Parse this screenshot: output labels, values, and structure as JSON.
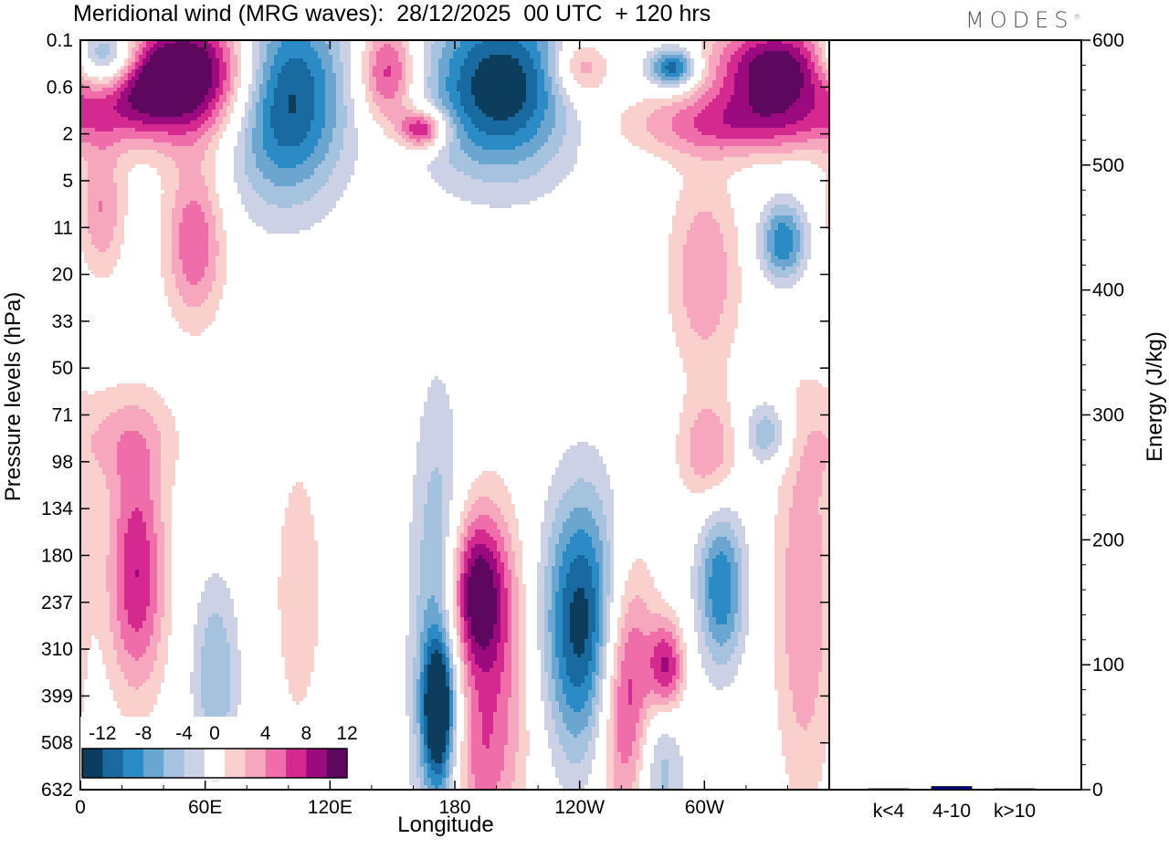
{
  "header": {
    "title": "Meridional wind (MRG waves):  28/12/2025  00 UTC  + 120 hrs",
    "brand": "MODES",
    "brand_mark": "®"
  },
  "chart_data": [
    {
      "type": "heatmap",
      "name": "meridional-wind-contours",
      "xlabel": "Longitude",
      "ylabel": "Pressure levels (hPa)",
      "x_ticks": [
        "0",
        "60E",
        "120E",
        "180",
        "120W",
        "60W"
      ],
      "x_tick_degrees": [
        0,
        60,
        120,
        180,
        240,
        300
      ],
      "xlim": [
        0,
        360
      ],
      "y_ticks": [
        "0.1",
        "0.6",
        "2",
        "5",
        "11",
        "20",
        "33",
        "50",
        "71",
        "98",
        "134",
        "180",
        "237",
        "310",
        "399",
        "508",
        "632"
      ],
      "colorbar": {
        "levels": [
          -14,
          -12,
          -10,
          -8,
          -6,
          -4,
          -2,
          2,
          4,
          6,
          8,
          10,
          12,
          14
        ],
        "labels": [
          "-12",
          "-8",
          "-4",
          "0",
          "4",
          "8",
          "12"
        ],
        "colors": [
          "#0c3d5c",
          "#1769a0",
          "#2b8bc4",
          "#6aa6cf",
          "#a5c3df",
          "#cdd1e6",
          "#ffffff",
          "#fad0cc",
          "#f7a7bd",
          "#ef6eaa",
          "#d42a90",
          "#9c0a7f",
          "#5c065e"
        ]
      },
      "features": [
        {
          "lon": 12,
          "level": 0.4,
          "value": -14,
          "rx": 12,
          "ry": 0.5
        },
        {
          "lon": 28,
          "level": 0.9,
          "value": 10,
          "rx": 18,
          "ry": 0.7
        },
        {
          "lon": 58,
          "level": 0.7,
          "value": 14,
          "rx": 22,
          "ry": 1.0
        },
        {
          "lon": 98,
          "level": 1.2,
          "value": -14,
          "rx": 20,
          "ry": 1.5
        },
        {
          "lon": 148,
          "level": 0.7,
          "value": 10,
          "rx": 10,
          "ry": 0.8
        },
        {
          "lon": 165,
          "level": 1.9,
          "value": 12,
          "rx": 8,
          "ry": 0.3
        },
        {
          "lon": 202,
          "level": 1.0,
          "value": -14,
          "rx": 25,
          "ry": 1.3
        },
        {
          "lon": 240,
          "level": 0.6,
          "value": 8,
          "rx": 10,
          "ry": 0.5
        },
        {
          "lon": 285,
          "level": 0.6,
          "value": -12,
          "rx": 8,
          "ry": 0.3
        },
        {
          "lon": 335,
          "level": 0.6,
          "value": 14,
          "rx": 22,
          "ry": 0.7
        },
        {
          "lon": 318,
          "level": 1.8,
          "value": 8,
          "rx": 40,
          "ry": 0.5
        },
        {
          "lon": 10,
          "level": 3.6,
          "value": 6,
          "rx": 8,
          "ry": 1.0
        },
        {
          "lon": 55,
          "level": 4.3,
          "value": 8,
          "rx": 10,
          "ry": 1.2
        },
        {
          "lon": 338,
          "level": 4.3,
          "value": -10,
          "rx": 8,
          "ry": 0.6
        },
        {
          "lon": 300,
          "level": 5.0,
          "value": 6,
          "rx": 12,
          "ry": 1.5
        },
        {
          "lon": 20,
          "level": 8.5,
          "value": 4,
          "rx": 20,
          "ry": 0.8
        },
        {
          "lon": 302,
          "level": 8.8,
          "value": 6,
          "rx": 10,
          "ry": 0.8
        },
        {
          "lon": 330,
          "level": 8.4,
          "value": -6,
          "rx": 8,
          "ry": 0.5
        },
        {
          "lon": 27,
          "level": 11.4,
          "value": 10,
          "rx": 10,
          "ry": 1.8
        },
        {
          "lon": 105,
          "level": 11.8,
          "value": 4,
          "rx": 8,
          "ry": 2.0
        },
        {
          "lon": 65,
          "level": 13.6,
          "value": -6,
          "rx": 8,
          "ry": 1.5
        },
        {
          "lon": 172,
          "level": 13.0,
          "value": -8,
          "rx": 9,
          "ry": 3.5
        },
        {
          "lon": 172,
          "level": 14.3,
          "value": -14,
          "rx": 5,
          "ry": 1.0
        },
        {
          "lon": 190,
          "level": 11.8,
          "value": 12,
          "rx": 10,
          "ry": 1.2
        },
        {
          "lon": 200,
          "level": 13.6,
          "value": 6,
          "rx": 14,
          "ry": 2.5
        },
        {
          "lon": 242,
          "level": 12.5,
          "value": -14,
          "rx": 14,
          "ry": 2.0
        },
        {
          "lon": 262,
          "level": 13.8,
          "value": 12,
          "rx": 10,
          "ry": 2.0
        },
        {
          "lon": 282,
          "level": 13.4,
          "value": 10,
          "rx": 6,
          "ry": 0.7
        },
        {
          "lon": 308,
          "level": 11.7,
          "value": -10,
          "rx": 8,
          "ry": 1.2
        },
        {
          "lon": 348,
          "level": 12.0,
          "value": 6,
          "rx": 10,
          "ry": 3.0
        },
        {
          "lon": 278,
          "level": 15.5,
          "value": -6,
          "rx": 8,
          "ry": 1.2
        },
        {
          "lon": 190,
          "level": 15.5,
          "value": 4,
          "rx": 10,
          "ry": 1.2
        }
      ]
    },
    {
      "type": "bar",
      "name": "energy-bars",
      "ylabel": "Energy (J/kg)",
      "ylim": [
        0,
        600
      ],
      "y_ticks": [
        "0",
        "100",
        "200",
        "300",
        "400",
        "500",
        "600"
      ],
      "y_tick_values": [
        0,
        100,
        200,
        300,
        400,
        500,
        600
      ],
      "categories": [
        "k<4",
        "4-10",
        "k>10"
      ],
      "values": [
        0.3,
        2.5,
        0.3
      ],
      "bar_colors": [
        "#000080",
        "#000080",
        "#000080"
      ]
    }
  ]
}
